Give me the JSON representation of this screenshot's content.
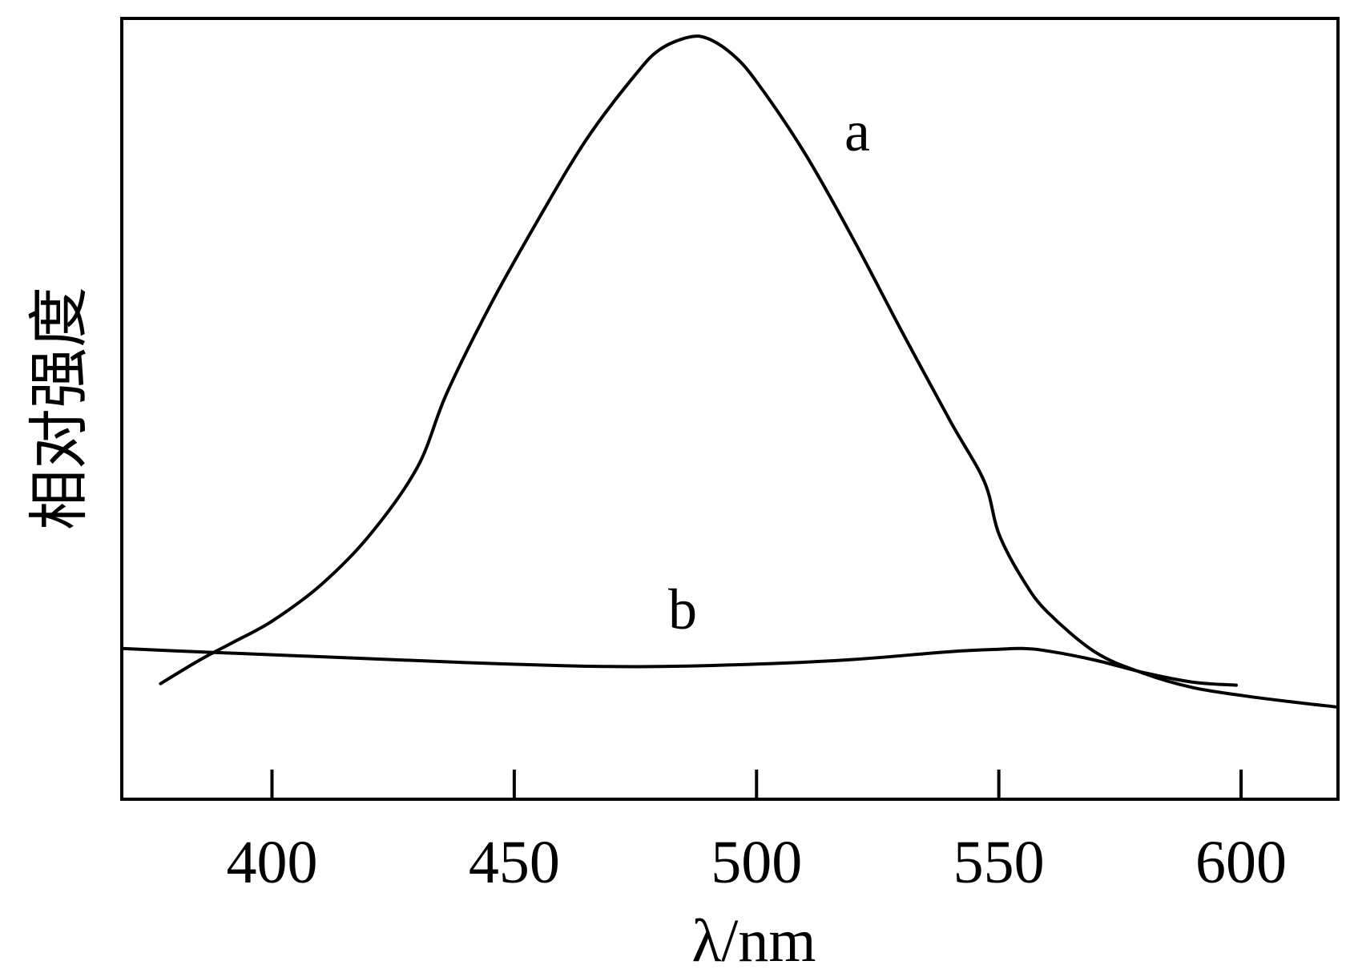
{
  "chart_data": {
    "type": "line",
    "xlabel": "λ/nm",
    "ylabel": "相对强度",
    "xlim": [
      369,
      620
    ],
    "ylim": [
      0,
      100
    ],
    "xticks": [
      400,
      450,
      500,
      550,
      600
    ],
    "grid": false,
    "yticks_shown": false,
    "series": [
      {
        "name": "a",
        "x": [
          377,
          385,
          392,
          400,
          410,
          420,
          430,
          436,
          445,
          455,
          465,
          475,
          480,
          486,
          490,
          495,
          500,
          510,
          520,
          530,
          540,
          547,
          550,
          555,
          560,
          570,
          580,
          590,
          600,
          610,
          620
        ],
        "y": [
          14.8,
          17.8,
          20.1,
          22.8,
          27.4,
          33.7,
          42.5,
          51.9,
          63.2,
          74.3,
          84.6,
          92.8,
          96.0,
          97.6,
          97.4,
          95.4,
          91.9,
          82.7,
          71.7,
          59.9,
          48.4,
          40.7,
          34.0,
          28.1,
          24.0,
          18.8,
          16.1,
          14.3,
          13.3,
          12.5,
          11.8
        ]
      },
      {
        "name": "b",
        "x": [
          369,
          380,
          400,
          420,
          440,
          460,
          470,
          480,
          500,
          520,
          540,
          550,
          555,
          560,
          570,
          580,
          590,
          599
        ],
        "y": [
          19.3,
          19.0,
          18.5,
          18.0,
          17.5,
          17.1,
          17.0,
          17.0,
          17.3,
          17.9,
          18.9,
          19.2,
          19.3,
          19.0,
          17.8,
          16.2,
          15.0,
          14.6
        ]
      }
    ]
  }
}
